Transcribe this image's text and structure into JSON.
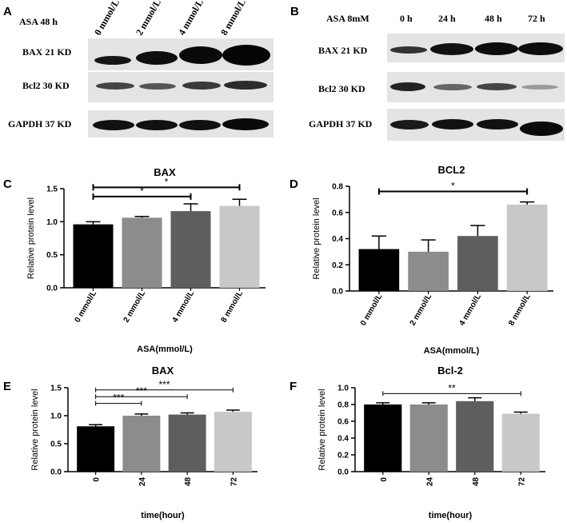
{
  "panels": {
    "A": "A",
    "B": "B",
    "C": "C",
    "D": "D",
    "E": "E",
    "F": "F"
  },
  "blotA": {
    "condition": "ASA 48 h",
    "lanes": [
      "0 mmol/L",
      "2 mmol/L",
      "4 mmol/L",
      "8 mmol/L"
    ],
    "rows": [
      "BAX  21 KD",
      "Bcl2  30 KD",
      "GAPDH  37 KD"
    ]
  },
  "blotB": {
    "condition": "ASA 8mM",
    "lanes": [
      "0 h",
      "24 h",
      "48 h",
      "72 h"
    ],
    "rows": [
      "BAX  21 KD",
      "Bcl2  30 KD",
      "GAPDH  37 KD"
    ]
  },
  "colors": {
    "bar1": "#000000",
    "bar2": "#8c8c8c",
    "bar3": "#5e5e5e",
    "bar4": "#c8c8c8"
  },
  "chart_data": [
    {
      "type": "bar",
      "title": "BAX",
      "xlabel": "ASA(mmol/L)",
      "ylabel": "Relative protein level",
      "categories": [
        "0 mmol/L",
        "2 mmol/L",
        "4 mmol/L",
        "8 mmol/L"
      ],
      "values": [
        0.96,
        1.06,
        1.16,
        1.24
      ],
      "errors": [
        0.04,
        0.02,
        0.11,
        0.1
      ],
      "ylim": [
        0,
        1.5
      ],
      "yticks": [
        "0.0",
        "0.5",
        "1.0",
        "1.5"
      ],
      "xtick_rotation": 60,
      "significance": [
        {
          "from": 0,
          "to": 2,
          "label": "*"
        },
        {
          "from": 0,
          "to": 3,
          "label": "*"
        }
      ]
    },
    {
      "type": "bar",
      "title": "BCL2",
      "xlabel": "ASA(mmol/L)",
      "ylabel": "Relative protein level",
      "categories": [
        "0 mmol/L",
        "2 mmol/L",
        "4 mmol/L",
        "8 mmol/L"
      ],
      "values": [
        0.32,
        0.3,
        0.42,
        0.66
      ],
      "errors": [
        0.1,
        0.09,
        0.08,
        0.02
      ],
      "ylim": [
        0,
        0.8
      ],
      "yticks": [
        "0.0",
        "0.2",
        "0.4",
        "0.6",
        "0.8"
      ],
      "xtick_rotation": 60,
      "significance": [
        {
          "from": 0,
          "to": 3,
          "label": "*"
        }
      ]
    },
    {
      "type": "bar",
      "title": "BAX",
      "xlabel": "time(hour)",
      "ylabel": "Relative protein level",
      "categories": [
        "0",
        "24",
        "48",
        "72"
      ],
      "values": [
        0.81,
        1.0,
        1.02,
        1.07
      ],
      "errors": [
        0.03,
        0.03,
        0.03,
        0.03
      ],
      "ylim": [
        0,
        1.5
      ],
      "yticks": [
        "0.0",
        "0.5",
        "1.0",
        "1.5"
      ],
      "xtick_rotation": 90,
      "significance": [
        {
          "from": 0,
          "to": 1,
          "label": "***"
        },
        {
          "from": 0,
          "to": 2,
          "label": "***"
        },
        {
          "from": 0,
          "to": 3,
          "label": "***"
        }
      ]
    },
    {
      "type": "bar",
      "title": "Bcl-2",
      "xlabel": "time(hour)",
      "ylabel": "Relative protein level",
      "categories": [
        "0",
        "24",
        "48",
        "72"
      ],
      "values": [
        0.8,
        0.8,
        0.84,
        0.69
      ],
      "errors": [
        0.02,
        0.02,
        0.04,
        0.02
      ],
      "ylim": [
        0,
        1.0
      ],
      "yticks": [
        "0.0",
        "0.2",
        "0.4",
        "0.6",
        "0.8",
        "1.0"
      ],
      "xtick_rotation": 90,
      "significance": [
        {
          "from": 0,
          "to": 3,
          "label": "**"
        }
      ]
    }
  ]
}
